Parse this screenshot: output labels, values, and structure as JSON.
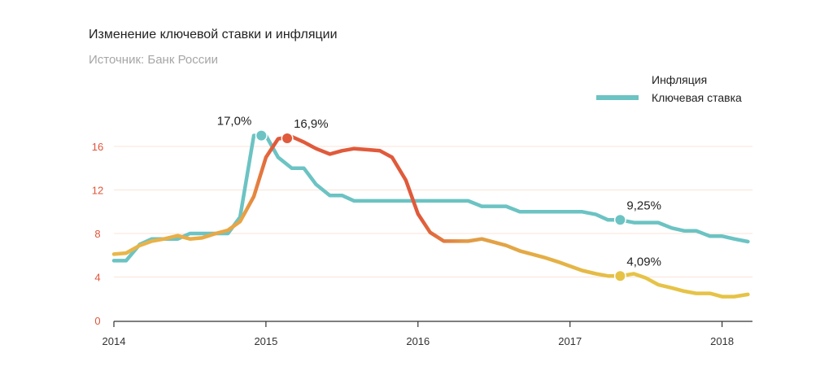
{
  "header": {
    "title": "Изменение ключевой ставки и инфляции",
    "subtitle": "Источник: Банк России"
  },
  "colors": {
    "inflation_start": "#e8b84b",
    "inflation_hot": "#e05a3b",
    "inflation_end": "#e6c347",
    "key_rate": "#6cc3c3",
    "grid": "#fbe3d9",
    "axis": "#333333",
    "y_tick": "#e0553a"
  },
  "chart_data": {
    "type": "line",
    "title": "Изменение ключевой ставки и инфляции",
    "subtitle": "Источник: Банк России",
    "xlabel": "",
    "ylabel": "",
    "xlim": [
      2014.0,
      2018.2
    ],
    "ylim": [
      0,
      16
    ],
    "y_ticks": [
      0,
      4,
      8,
      12,
      16
    ],
    "x_ticks": [
      2014,
      2015,
      2016,
      2017,
      2018
    ],
    "grid": "horizontal",
    "legend_position": "top-right",
    "series": [
      {
        "name": "Инфляция",
        "color_key": "inflation",
        "points": [
          [
            2014.0,
            6.1
          ],
          [
            2014.08,
            6.2
          ],
          [
            2014.17,
            6.9
          ],
          [
            2014.25,
            7.3
          ],
          [
            2014.33,
            7.5
          ],
          [
            2014.42,
            7.8
          ],
          [
            2014.5,
            7.5
          ],
          [
            2014.58,
            7.6
          ],
          [
            2014.67,
            8.0
          ],
          [
            2014.75,
            8.3
          ],
          [
            2014.83,
            9.1
          ],
          [
            2014.92,
            11.4
          ],
          [
            2015.0,
            15.0
          ],
          [
            2015.08,
            16.7
          ],
          [
            2015.17,
            16.9
          ],
          [
            2015.25,
            16.4
          ],
          [
            2015.33,
            15.8
          ],
          [
            2015.42,
            15.3
          ],
          [
            2015.5,
            15.6
          ],
          [
            2015.58,
            15.8
          ],
          [
            2015.67,
            15.7
          ],
          [
            2015.75,
            15.6
          ],
          [
            2015.83,
            15.0
          ],
          [
            2015.92,
            12.9
          ],
          [
            2016.0,
            9.8
          ],
          [
            2016.08,
            8.1
          ],
          [
            2016.17,
            7.3
          ],
          [
            2016.25,
            7.3
          ],
          [
            2016.33,
            7.3
          ],
          [
            2016.42,
            7.5
          ],
          [
            2016.5,
            7.2
          ],
          [
            2016.58,
            6.9
          ],
          [
            2016.67,
            6.4
          ],
          [
            2016.75,
            6.1
          ],
          [
            2016.83,
            5.8
          ],
          [
            2016.92,
            5.4
          ],
          [
            2017.0,
            5.0
          ],
          [
            2017.08,
            4.6
          ],
          [
            2017.17,
            4.3
          ],
          [
            2017.25,
            4.1
          ],
          [
            2017.33,
            4.09
          ],
          [
            2017.42,
            4.3
          ],
          [
            2017.5,
            3.9
          ],
          [
            2017.58,
            3.3
          ],
          [
            2017.67,
            3.0
          ],
          [
            2017.75,
            2.7
          ],
          [
            2017.83,
            2.5
          ],
          [
            2017.92,
            2.5
          ],
          [
            2018.0,
            2.2
          ],
          [
            2018.08,
            2.2
          ],
          [
            2018.17,
            2.4
          ]
        ]
      },
      {
        "name": "Ключевая ставка",
        "color_key": "key_rate",
        "points": [
          [
            2014.0,
            5.5
          ],
          [
            2014.08,
            5.5
          ],
          [
            2014.17,
            7.0
          ],
          [
            2014.25,
            7.5
          ],
          [
            2014.33,
            7.5
          ],
          [
            2014.42,
            7.5
          ],
          [
            2014.5,
            8.0
          ],
          [
            2014.58,
            8.0
          ],
          [
            2014.67,
            8.0
          ],
          [
            2014.75,
            8.0
          ],
          [
            2014.83,
            9.5
          ],
          [
            2014.92,
            17.0
          ],
          [
            2015.0,
            17.0
          ],
          [
            2015.08,
            15.0
          ],
          [
            2015.17,
            14.0
          ],
          [
            2015.25,
            14.0
          ],
          [
            2015.33,
            12.5
          ],
          [
            2015.42,
            11.5
          ],
          [
            2015.5,
            11.5
          ],
          [
            2015.58,
            11.0
          ],
          [
            2015.67,
            11.0
          ],
          [
            2015.75,
            11.0
          ],
          [
            2015.83,
            11.0
          ],
          [
            2015.92,
            11.0
          ],
          [
            2016.0,
            11.0
          ],
          [
            2016.08,
            11.0
          ],
          [
            2016.17,
            11.0
          ],
          [
            2016.25,
            11.0
          ],
          [
            2016.33,
            11.0
          ],
          [
            2016.42,
            10.5
          ],
          [
            2016.5,
            10.5
          ],
          [
            2016.58,
            10.5
          ],
          [
            2016.67,
            10.0
          ],
          [
            2016.75,
            10.0
          ],
          [
            2016.83,
            10.0
          ],
          [
            2016.92,
            10.0
          ],
          [
            2017.0,
            10.0
          ],
          [
            2017.08,
            10.0
          ],
          [
            2017.17,
            9.75
          ],
          [
            2017.25,
            9.25
          ],
          [
            2017.33,
            9.25
          ],
          [
            2017.42,
            9.0
          ],
          [
            2017.5,
            9.0
          ],
          [
            2017.58,
            9.0
          ],
          [
            2017.67,
            8.5
          ],
          [
            2017.75,
            8.25
          ],
          [
            2017.83,
            8.25
          ],
          [
            2017.92,
            7.75
          ],
          [
            2018.0,
            7.75
          ],
          [
            2018.08,
            7.5
          ],
          [
            2018.17,
            7.25
          ]
        ]
      }
    ],
    "annotations": [
      {
        "text": "17,0%",
        "series": "Ключевая ставка",
        "x": 2014.97,
        "y": 17.0,
        "color_key": "key_rate",
        "label_side": "left"
      },
      {
        "text": "16,9%",
        "series": "Инфляция",
        "x": 2015.14,
        "y": 16.75,
        "color_key": "inflation_hot",
        "label_side": "right"
      },
      {
        "text": "9,25%",
        "series": "Ключевая ставка",
        "x": 2017.33,
        "y": 9.25,
        "color_key": "key_rate",
        "label_side": "right"
      },
      {
        "text": "4,09%",
        "series": "Инфляция",
        "x": 2017.33,
        "y": 4.09,
        "color_key": "inflation_end",
        "label_side": "right"
      }
    ]
  }
}
